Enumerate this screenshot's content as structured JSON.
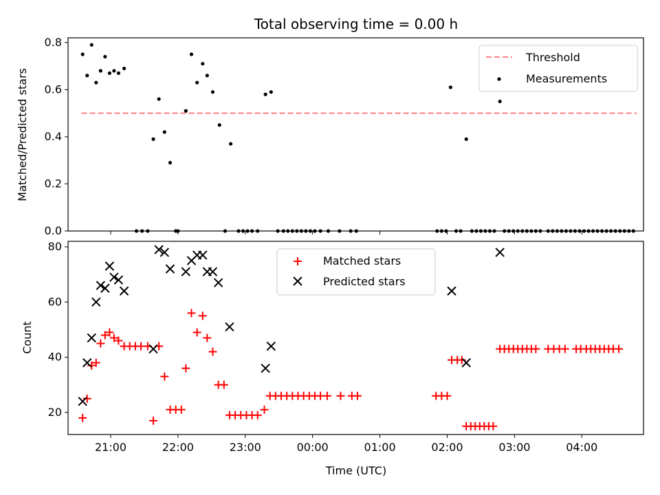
{
  "title": "Total observing time = 0.00 h",
  "chart_data": [
    {
      "type": "scatter",
      "panel": "top",
      "ylabel": "Matched/Predicted stars",
      "xlabel": "",
      "x_is_time": true,
      "xlim": [
        "20:22",
        "04:55"
      ],
      "ylim": [
        0,
        0.82
      ],
      "yticks": [
        0.0,
        0.2,
        0.4,
        0.6,
        0.8
      ],
      "ytick_labels": [
        "0.0",
        "0.2",
        "0.4",
        "0.6",
        "0.8"
      ],
      "legend": {
        "position": "upper right",
        "entries": [
          "Threshold",
          "Measurements"
        ]
      },
      "threshold": {
        "name": "Threshold",
        "color": "#ff7f7f",
        "value": 0.5,
        "x": [
          "20:34",
          "04:49"
        ]
      },
      "measurements": {
        "name": "Measurements",
        "color": "#000000",
        "points": [
          [
            "20:35",
            0.75
          ],
          [
            "20:39",
            0.66
          ],
          [
            "20:43",
            0.79
          ],
          [
            "20:47",
            0.63
          ],
          [
            "20:51",
            0.68
          ],
          [
            "20:55",
            0.74
          ],
          [
            "20:59",
            0.67
          ],
          [
            "21:03",
            0.68
          ],
          [
            "21:07",
            0.67
          ],
          [
            "21:12",
            0.69
          ],
          [
            "21:23",
            0.0
          ],
          [
            "21:28",
            0.0
          ],
          [
            "21:33",
            0.0
          ],
          [
            "21:38",
            0.39
          ],
          [
            "21:43",
            0.56
          ],
          [
            "21:48",
            0.42
          ],
          [
            "21:53",
            0.29
          ],
          [
            "21:58",
            0.0
          ],
          [
            "22:00",
            0.0
          ],
          [
            "22:07",
            0.51
          ],
          [
            "22:12",
            0.75
          ],
          [
            "22:17",
            0.63
          ],
          [
            "22:22",
            0.71
          ],
          [
            "22:26",
            0.66
          ],
          [
            "22:31",
            0.59
          ],
          [
            "22:37",
            0.45
          ],
          [
            "22:42",
            0.0
          ],
          [
            "22:47",
            0.37
          ],
          [
            "22:54",
            0.0
          ],
          [
            "22:58",
            0.0
          ],
          [
            "23:02",
            0.0
          ],
          [
            "23:06",
            0.0
          ],
          [
            "23:11",
            0.0
          ],
          [
            "23:18",
            0.58
          ],
          [
            "23:23",
            0.59
          ],
          [
            "23:29",
            0.0
          ],
          [
            "23:34",
            0.0
          ],
          [
            "23:38",
            0.0
          ],
          [
            "23:42",
            0.0
          ],
          [
            "23:46",
            0.0
          ],
          [
            "23:50",
            0.0
          ],
          [
            "23:54",
            0.0
          ],
          [
            "23:58",
            0.0
          ],
          [
            "00:02",
            0.0
          ],
          [
            "00:07",
            0.0
          ],
          [
            "00:14",
            0.0
          ],
          [
            "00:24",
            0.0
          ],
          [
            "00:34",
            0.0
          ],
          [
            "00:39",
            0.0
          ],
          [
            "01:51",
            0.0
          ],
          [
            "01:55",
            0.0
          ],
          [
            "01:59",
            0.0
          ],
          [
            "02:03",
            0.61
          ],
          [
            "02:08",
            0.0
          ],
          [
            "02:12",
            0.0
          ],
          [
            "02:17",
            0.39
          ],
          [
            "02:22",
            0.0
          ],
          [
            "02:26",
            0.0
          ],
          [
            "02:30",
            0.0
          ],
          [
            "02:34",
            0.0
          ],
          [
            "02:38",
            0.0
          ],
          [
            "02:42",
            0.0
          ],
          [
            "02:47",
            0.55
          ],
          [
            "02:51",
            0.0
          ],
          [
            "02:55",
            0.0
          ],
          [
            "02:59",
            0.0
          ],
          [
            "03:03",
            0.0
          ],
          [
            "03:07",
            0.0
          ],
          [
            "03:11",
            0.0
          ],
          [
            "03:15",
            0.0
          ],
          [
            "03:19",
            0.0
          ],
          [
            "03:23",
            0.0
          ],
          [
            "03:30",
            0.0
          ],
          [
            "03:34",
            0.0
          ],
          [
            "03:38",
            0.0
          ],
          [
            "03:42",
            0.0
          ],
          [
            "03:46",
            0.0
          ],
          [
            "03:50",
            0.0
          ],
          [
            "03:54",
            0.0
          ],
          [
            "03:58",
            0.0
          ],
          [
            "04:02",
            0.0
          ],
          [
            "04:06",
            0.0
          ],
          [
            "04:10",
            0.0
          ],
          [
            "04:14",
            0.0
          ],
          [
            "04:18",
            0.0
          ],
          [
            "04:22",
            0.0
          ],
          [
            "04:26",
            0.0
          ],
          [
            "04:30",
            0.0
          ],
          [
            "04:34",
            0.0
          ],
          [
            "04:38",
            0.0
          ],
          [
            "04:42",
            0.0
          ],
          [
            "04:46",
            0.0
          ]
        ]
      }
    },
    {
      "type": "scatter",
      "panel": "bottom",
      "ylabel": "Count",
      "xlabel": "Time (UTC)",
      "x_is_time": true,
      "xlim": [
        "20:22",
        "04:55"
      ],
      "ylim": [
        12,
        82
      ],
      "yticks": [
        20,
        40,
        60,
        80
      ],
      "ytick_labels": [
        "20",
        "40",
        "60",
        "80"
      ],
      "xticks": [
        "21:00",
        "22:00",
        "23:00",
        "00:00",
        "01:00",
        "02:00",
        "03:00",
        "04:00"
      ],
      "xtick_labels": [
        "21:00",
        "22:00",
        "23:00",
        "00:00",
        "01:00",
        "02:00",
        "03:00",
        "04:00"
      ],
      "legend": {
        "position": "upper center",
        "entries": [
          "Matched stars",
          "Predicted stars"
        ]
      },
      "series": [
        {
          "name": "Matched stars",
          "marker": "plus",
          "color": "#ff0000",
          "points": [
            [
              "20:35",
              18
            ],
            [
              "20:39",
              25
            ],
            [
              "20:43",
              37
            ],
            [
              "20:47",
              38
            ],
            [
              "20:51",
              45
            ],
            [
              "20:55",
              48
            ],
            [
              "20:59",
              49
            ],
            [
              "21:03",
              47
            ],
            [
              "21:07",
              46
            ],
            [
              "21:12",
              44
            ],
            [
              "21:17",
              44
            ],
            [
              "21:22",
              44
            ],
            [
              "21:27",
              44
            ],
            [
              "21:33",
              44
            ],
            [
              "21:38",
              17
            ],
            [
              "21:43",
              44
            ],
            [
              "21:48",
              33
            ],
            [
              "21:53",
              21
            ],
            [
              "21:58",
              21
            ],
            [
              "22:03",
              21
            ],
            [
              "22:07",
              36
            ],
            [
              "22:12",
              56
            ],
            [
              "22:17",
              49
            ],
            [
              "22:22",
              55
            ],
            [
              "22:26",
              47
            ],
            [
              "22:31",
              42
            ],
            [
              "22:36",
              30
            ],
            [
              "22:41",
              30
            ],
            [
              "22:46",
              19
            ],
            [
              "22:51",
              19
            ],
            [
              "22:56",
              19
            ],
            [
              "23:01",
              19
            ],
            [
              "23:06",
              19
            ],
            [
              "23:11",
              19
            ],
            [
              "23:17",
              21
            ],
            [
              "23:22",
              26
            ],
            [
              "23:27",
              26
            ],
            [
              "23:32",
              26
            ],
            [
              "23:37",
              26
            ],
            [
              "23:42",
              26
            ],
            [
              "23:47",
              26
            ],
            [
              "23:52",
              26
            ],
            [
              "23:57",
              26
            ],
            [
              "00:02",
              26
            ],
            [
              "00:07",
              26
            ],
            [
              "00:13",
              26
            ],
            [
              "00:25",
              26
            ],
            [
              "00:35",
              26
            ],
            [
              "00:40",
              26
            ],
            [
              "01:50",
              26
            ],
            [
              "01:55",
              26
            ],
            [
              "02:00",
              26
            ],
            [
              "02:04",
              39
            ],
            [
              "02:09",
              39
            ],
            [
              "02:13",
              39
            ],
            [
              "02:17",
              15
            ],
            [
              "02:21",
              15
            ],
            [
              "02:25",
              15
            ],
            [
              "02:29",
              15
            ],
            [
              "02:33",
              15
            ],
            [
              "02:37",
              15
            ],
            [
              "02:41",
              15
            ],
            [
              "02:47",
              43
            ],
            [
              "02:51",
              43
            ],
            [
              "02:55",
              43
            ],
            [
              "02:59",
              43
            ],
            [
              "03:03",
              43
            ],
            [
              "03:07",
              43
            ],
            [
              "03:11",
              43
            ],
            [
              "03:15",
              43
            ],
            [
              "03:19",
              43
            ],
            [
              "03:30",
              43
            ],
            [
              "03:35",
              43
            ],
            [
              "03:40",
              43
            ],
            [
              "03:45",
              43
            ],
            [
              "03:55",
              43
            ],
            [
              "03:59",
              43
            ],
            [
              "04:04",
              43
            ],
            [
              "04:08",
              43
            ],
            [
              "04:12",
              43
            ],
            [
              "04:16",
              43
            ],
            [
              "04:20",
              43
            ],
            [
              "04:24",
              43
            ],
            [
              "04:28",
              43
            ],
            [
              "04:33",
              43
            ]
          ]
        },
        {
          "name": "Predicted stars",
          "marker": "x",
          "color": "#000000",
          "points": [
            [
              "20:35",
              24
            ],
            [
              "20:39",
              38
            ],
            [
              "20:43",
              47
            ],
            [
              "20:47",
              60
            ],
            [
              "20:51",
              66
            ],
            [
              "20:55",
              65
            ],
            [
              "20:59",
              73
            ],
            [
              "21:03",
              69
            ],
            [
              "21:07",
              68
            ],
            [
              "21:12",
              64
            ],
            [
              "21:38",
              43
            ],
            [
              "21:43",
              79
            ],
            [
              "21:48",
              78
            ],
            [
              "21:53",
              72
            ],
            [
              "22:07",
              71
            ],
            [
              "22:12",
              75
            ],
            [
              "22:17",
              77
            ],
            [
              "22:22",
              77
            ],
            [
              "22:26",
              71
            ],
            [
              "22:31",
              71
            ],
            [
              "22:36",
              67
            ],
            [
              "22:46",
              51
            ],
            [
              "23:18",
              36
            ],
            [
              "23:23",
              44
            ],
            [
              "02:04",
              64
            ],
            [
              "02:17",
              38
            ],
            [
              "02:47",
              78
            ]
          ]
        }
      ]
    }
  ]
}
